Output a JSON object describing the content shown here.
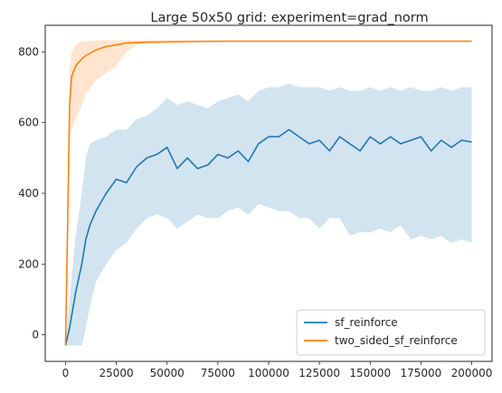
{
  "chart_data": {
    "type": "line",
    "title": "Large 50x50 grid: experiment=grad_norm",
    "xlabel": "",
    "ylabel": "",
    "xlim": [
      -10000,
      210000
    ],
    "ylim": [
      -75,
      875
    ],
    "xticks": [
      0,
      25000,
      50000,
      75000,
      100000,
      125000,
      150000,
      175000,
      200000
    ],
    "yticks": [
      0,
      200,
      400,
      600,
      800
    ],
    "grid": false,
    "legend_position": "lower right",
    "series": [
      {
        "name": "sf_reinforce",
        "color": "#1f77b4",
        "band_color": "#1f77b4",
        "x": [
          0,
          2000,
          5000,
          8000,
          10000,
          12000,
          15000,
          20000,
          25000,
          30000,
          35000,
          40000,
          45000,
          50000,
          55000,
          60000,
          65000,
          70000,
          75000,
          80000,
          85000,
          90000,
          95000,
          100000,
          105000,
          110000,
          115000,
          120000,
          125000,
          130000,
          135000,
          140000,
          145000,
          150000,
          155000,
          160000,
          165000,
          170000,
          175000,
          180000,
          185000,
          190000,
          195000,
          200000
        ],
        "mean": [
          -30,
          20,
          120,
          200,
          270,
          310,
          350,
          400,
          440,
          430,
          475,
          500,
          510,
          530,
          470,
          500,
          470,
          480,
          510,
          500,
          520,
          490,
          540,
          560,
          560,
          580,
          560,
          540,
          550,
          520,
          560,
          540,
          520,
          560,
          540,
          560,
          540,
          550,
          560,
          520,
          550,
          530,
          550,
          545
        ],
        "lower": [
          -30,
          -30,
          -30,
          -30,
          20,
          80,
          150,
          200,
          240,
          260,
          300,
          330,
          340,
          330,
          300,
          320,
          340,
          330,
          330,
          350,
          360,
          340,
          370,
          360,
          350,
          350,
          330,
          330,
          300,
          330,
          330,
          280,
          290,
          290,
          300,
          290,
          310,
          270,
          280,
          270,
          280,
          260,
          270,
          260
        ],
        "upper": [
          -30,
          100,
          280,
          400,
          500,
          540,
          550,
          560,
          580,
          580,
          610,
          620,
          640,
          670,
          650,
          660,
          650,
          640,
          660,
          670,
          680,
          660,
          690,
          700,
          700,
          710,
          700,
          700,
          700,
          690,
          700,
          690,
          690,
          700,
          690,
          700,
          690,
          700,
          690,
          690,
          700,
          690,
          700,
          700
        ]
      },
      {
        "name": "two_sided_sf_reinforce",
        "color": "#ff7f0e",
        "band_color": "#ff7f0e",
        "x": [
          0,
          1000,
          2000,
          3000,
          5000,
          8000,
          10000,
          15000,
          20000,
          25000,
          30000,
          35000,
          40000,
          50000,
          60000,
          80000,
          100000,
          120000,
          140000,
          160000,
          180000,
          200000
        ],
        "mean": [
          -30,
          300,
          650,
          730,
          760,
          780,
          790,
          805,
          815,
          820,
          825,
          826,
          827,
          828,
          829,
          830,
          830,
          830,
          830,
          830,
          830,
          830
        ],
        "lower": [
          -30,
          200,
          550,
          580,
          610,
          650,
          680,
          720,
          740,
          760,
          800,
          820,
          825,
          826,
          827,
          828,
          828,
          828,
          828,
          828,
          828,
          828
        ],
        "upper": [
          -30,
          400,
          750,
          800,
          820,
          830,
          830,
          832,
          833,
          833,
          833,
          833,
          833,
          833,
          833,
          833,
          833,
          833,
          833,
          833,
          833,
          833
        ]
      }
    ]
  }
}
